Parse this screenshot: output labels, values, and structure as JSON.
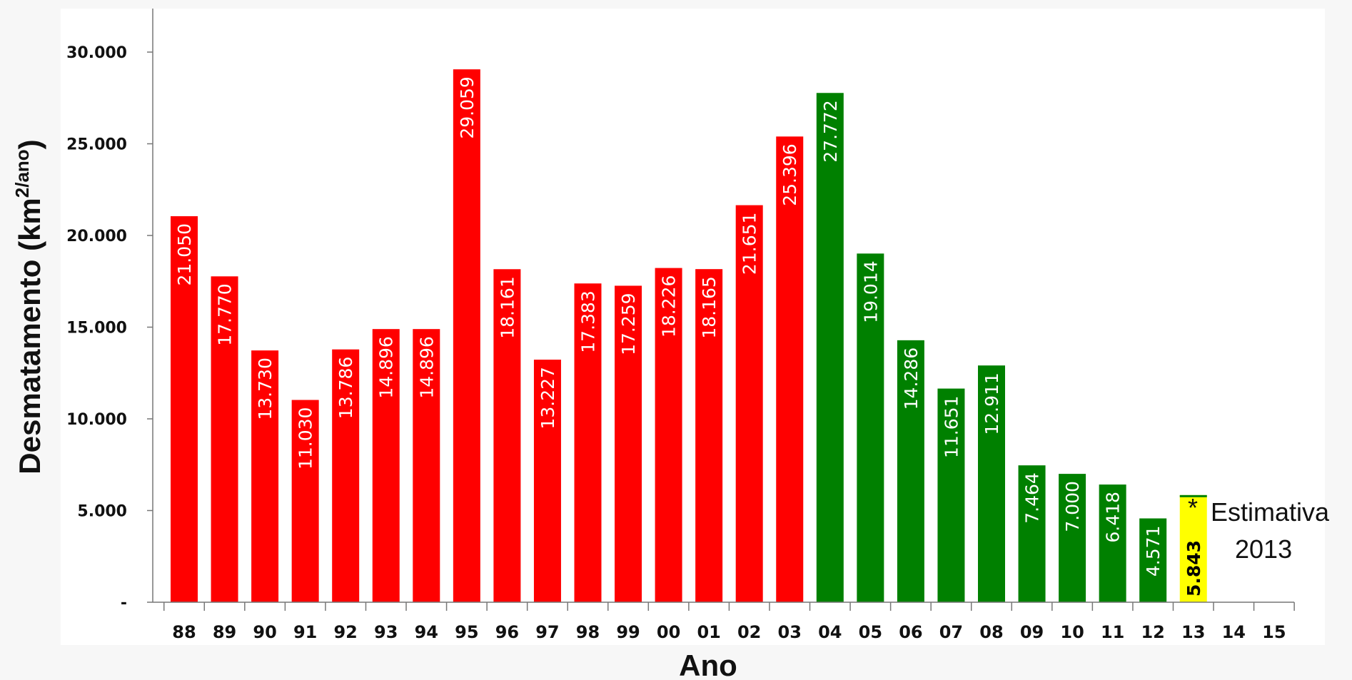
{
  "chart_data": {
    "type": "bar",
    "categories": [
      "88",
      "89",
      "90",
      "91",
      "92",
      "93",
      "94",
      "95",
      "96",
      "97",
      "98",
      "99",
      "00",
      "01",
      "02",
      "03",
      "04",
      "05",
      "06",
      "07",
      "08",
      "09",
      "10",
      "11",
      "12",
      "13",
      "14",
      "15"
    ],
    "values": [
      21050,
      17770,
      13730,
      11030,
      13786,
      14896,
      14896,
      29059,
      18161,
      13227,
      17383,
      17259,
      18226,
      18165,
      21651,
      25396,
      27772,
      19014,
      14286,
      11651,
      12911,
      7464,
      7000,
      6418,
      4571,
      5843,
      null,
      null
    ],
    "value_labels": [
      "21.050",
      "17.770",
      "13.730",
      "11.030",
      "13.786",
      "14.896",
      "14.896",
      "29.059",
      "18.161",
      "13.227",
      "17.383",
      "17.259",
      "18.226",
      "18.165",
      "21.651",
      "25.396",
      "27.772",
      "19.014",
      "14.286",
      "11.651",
      "12.911",
      "7.464",
      "7.000",
      "6.418",
      "4.571",
      "5.843",
      "",
      ""
    ],
    "bar_colors": [
      "#ff0000",
      "#ff0000",
      "#ff0000",
      "#ff0000",
      "#ff0000",
      "#ff0000",
      "#ff0000",
      "#ff0000",
      "#ff0000",
      "#ff0000",
      "#ff0000",
      "#ff0000",
      "#ff0000",
      "#ff0000",
      "#ff0000",
      "#ff0000",
      "#008000",
      "#008000",
      "#008000",
      "#008000",
      "#008000",
      "#008000",
      "#008000",
      "#008000",
      "#008000",
      "#ffff00",
      "",
      ""
    ],
    "highlight_index": 25,
    "highlight_label_color": "#000000",
    "highlight_top_stripe_color": "#008000",
    "ylim": [
      0,
      32000
    ],
    "yticks": [
      0,
      5000,
      10000,
      15000,
      20000,
      25000,
      30000
    ],
    "ytick_labels": [
      "-",
      "5.000",
      "10.000",
      "15.000",
      "20.000",
      "25.000",
      "30.000"
    ],
    "xlabel": "Ano",
    "ylabel": "Desmatamento (km",
    "ylabel_sup": "2/ano",
    "ylabel_close": ")",
    "annotation": {
      "star": "*",
      "line1": "Estimativa",
      "line2": "2013"
    },
    "grid": false
  }
}
